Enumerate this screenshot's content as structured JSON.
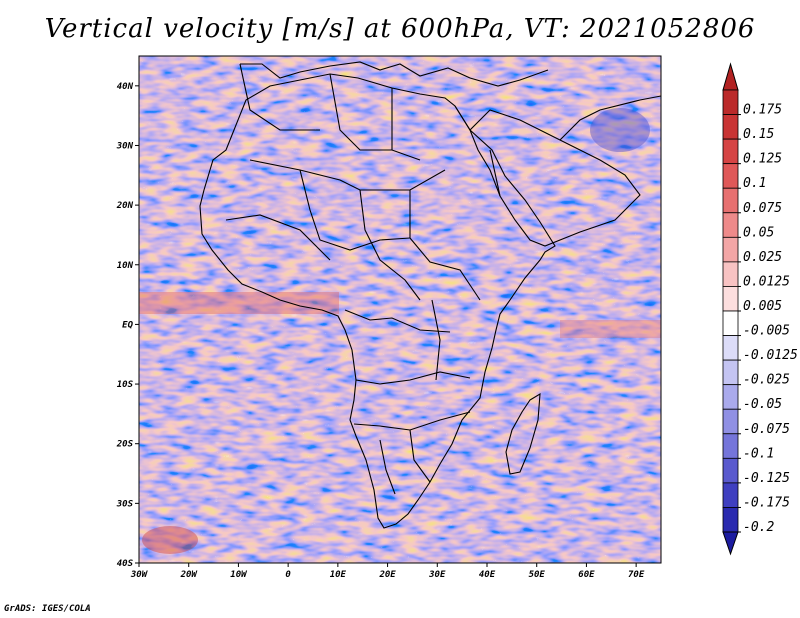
{
  "title": "Vertical velocity [m/s] at 600hPa, VT: 2021052806",
  "footer": "GrADS: IGES/COLA",
  "colors": {
    "background": "#ffffff",
    "coast": "#000000",
    "border": "#000000"
  },
  "map": {
    "lon_range": [
      -30,
      75
    ],
    "lat_range": [
      -40,
      45
    ],
    "lon_ticks": [
      {
        "value": -30,
        "label": "30W"
      },
      {
        "value": -20,
        "label": "20W"
      },
      {
        "value": -10,
        "label": "10W"
      },
      {
        "value": 0,
        "label": "0"
      },
      {
        "value": 10,
        "label": "10E"
      },
      {
        "value": 20,
        "label": "20E"
      },
      {
        "value": 30,
        "label": "30E"
      },
      {
        "value": 40,
        "label": "40E"
      },
      {
        "value": 50,
        "label": "50E"
      },
      {
        "value": 60,
        "label": "60E"
      },
      {
        "value": 70,
        "label": "70E"
      }
    ],
    "lat_ticks": [
      {
        "value": 40,
        "label": "40N"
      },
      {
        "value": 30,
        "label": "30N"
      },
      {
        "value": 20,
        "label": "20N"
      },
      {
        "value": 10,
        "label": "10N"
      },
      {
        "value": 0,
        "label": "EQ"
      },
      {
        "value": -10,
        "label": "10S"
      },
      {
        "value": -20,
        "label": "20S"
      },
      {
        "value": -30,
        "label": "30S"
      },
      {
        "value": -40,
        "label": "40S"
      }
    ]
  },
  "colorbar": {
    "levels": [
      {
        "label": "0.175",
        "color": "#bb2a2a"
      },
      {
        "label": "0.15",
        "color": "#c93434"
      },
      {
        "label": "0.125",
        "color": "#d54444"
      },
      {
        "label": "0.1",
        "color": "#df5858"
      },
      {
        "label": "0.075",
        "color": "#e77070"
      },
      {
        "label": "0.05",
        "color": "#ee8a8a"
      },
      {
        "label": "0.025",
        "color": "#f3a6a6"
      },
      {
        "label": "0.0125",
        "color": "#f8c3c3"
      },
      {
        "label": "0.005",
        "color": "#fcdede"
      },
      {
        "label": "-0.005",
        "color": "#ffffff"
      },
      {
        "label": "-0.0125",
        "color": "#dcdcf8"
      },
      {
        "label": "-0.025",
        "color": "#c4c4f2"
      },
      {
        "label": "-0.05",
        "color": "#aaaaec"
      },
      {
        "label": "-0.075",
        "color": "#9090e4"
      },
      {
        "label": "-0.1",
        "color": "#7575da"
      },
      {
        "label": "-0.125",
        "color": "#5a5ace"
      },
      {
        "label": "-0.175",
        "color": "#3f3fc0"
      },
      {
        "label": "-0.2",
        "color": "#2a2aaf"
      }
    ],
    "top_tip_color": "#b22222",
    "bottom_tip_color": "#1c1ca0"
  }
}
